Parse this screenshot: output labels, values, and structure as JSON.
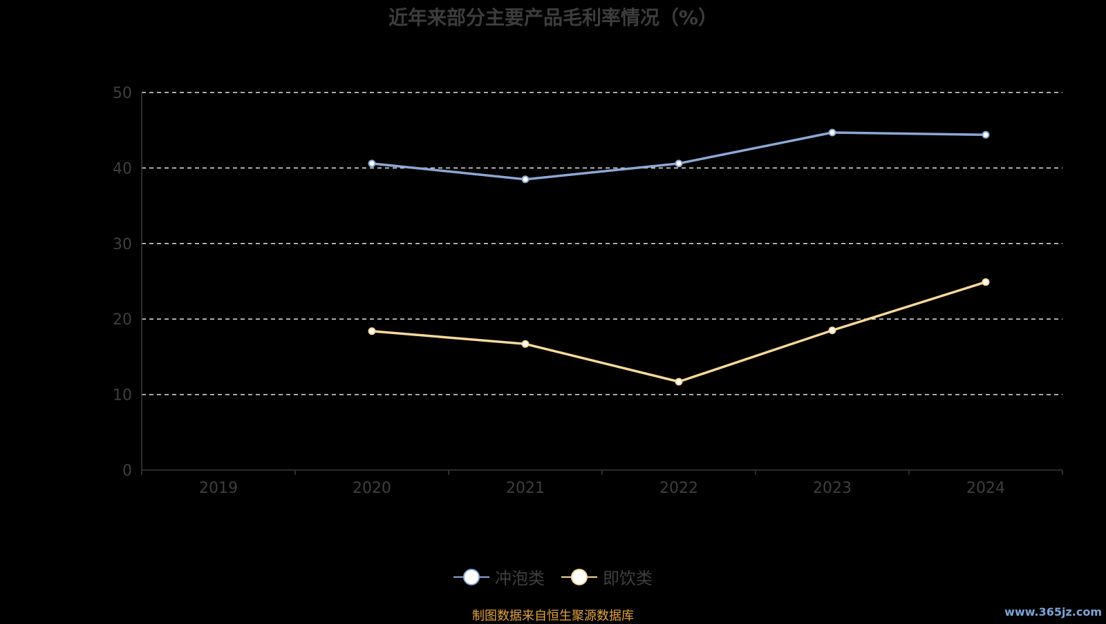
{
  "chart_data": {
    "type": "line",
    "title": "近年来部分主要产品毛利率情况（%）",
    "categories": [
      "2019",
      "2020",
      "2021",
      "2022",
      "2023",
      "2024"
    ],
    "ylim": [
      0,
      50
    ],
    "yticks": [
      0,
      10,
      20,
      30,
      40,
      50
    ],
    "grid": true,
    "legend_position": "bottom",
    "series": [
      {
        "name": "冲泡类",
        "color": "#8aa9d6",
        "values": [
          null,
          40.6,
          38.5,
          40.6,
          44.7,
          44.4
        ]
      },
      {
        "name": "即饮类",
        "color": "#fad99a",
        "values": [
          null,
          18.4,
          16.7,
          11.7,
          18.5,
          24.9
        ]
      }
    ]
  },
  "source_note": "制图数据来自恒生聚源数据库",
  "watermark": "www.365jz.com"
}
